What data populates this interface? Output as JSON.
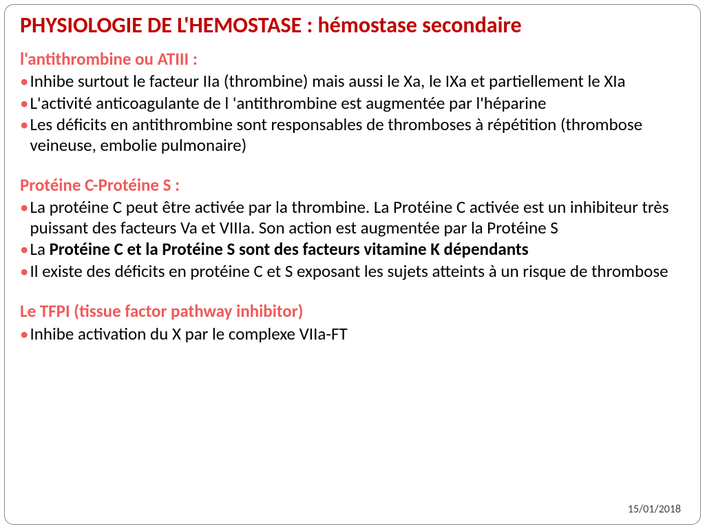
{
  "colors": {
    "title": "#c00000",
    "heading": "#f05a5a",
    "bullet": "#f05a5a",
    "body": "#000000",
    "border": "#888888",
    "background": "#ffffff",
    "date": "#404040"
  },
  "typography": {
    "title_fontsize": 32,
    "heading_fontsize": 25,
    "body_fontsize": 25,
    "date_fontsize": 16,
    "font_family": "Calibri"
  },
  "title": "PHYSIOLOGIE DE L'HEMOSTASE : hémostase secondaire",
  "section1": {
    "heading": "l'antithrombine ou ATIII :",
    "b1": "Inhibe surtout  le facteur IIa (thrombine) mais aussi le  Xa, le IXa et partiellement le XIa",
    "b2": "L'activité anticoagulante de l 'antithrombine est augmentée par l'héparine",
    "b3": "Les déficits en antithrombine sont responsables de thromboses à répétition (thrombose veineuse, embolie pulmonaire)"
  },
  "section2": {
    "heading": "Protéine C-Protéine S :",
    "b1": "La protéine C peut être activée par la thrombine. La Protéine C activée est un inhibiteur très puissant des facteurs Va et VIIIa. Son action est augmentée par la Protéine S",
    "b2_prefix": "La ",
    "b2_bold": "Protéine C et la Protéine S sont des facteurs vitamine  K dépendants",
    "b3": "Il existe des déficits en protéine C et S exposant les sujets atteints à un risque de thrombose"
  },
  "section3": {
    "heading": "Le TFPI (tissue factor pathway inhibitor)",
    "b1": "Inhibe activation du X par le complexe VIIa-FT"
  },
  "date": "15/01/2018"
}
